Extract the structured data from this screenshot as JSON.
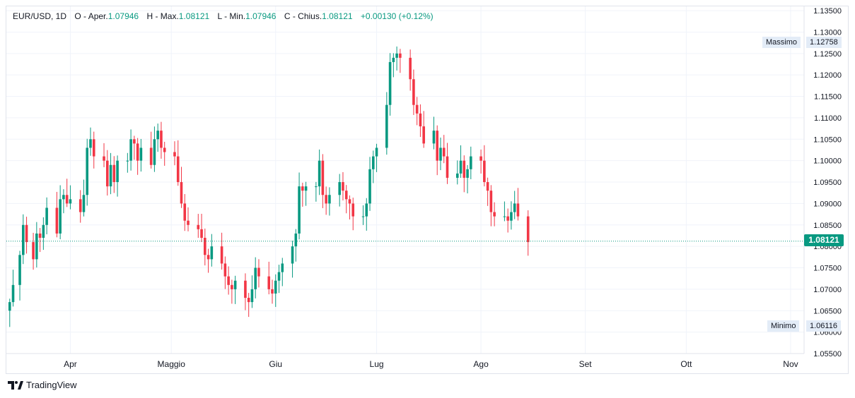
{
  "legend": {
    "symbol": "EUR/USD, 1D",
    "o_label": "O - Aper.",
    "o_value": "1.07946",
    "h_label": "H - Max.",
    "h_value": "1.08121",
    "l_label": "L - Min.",
    "l_value": "1.07946",
    "c_label": "C - Chius.",
    "c_value": "1.08121",
    "change": "+0.00130 (+0.12%)"
  },
  "max_tag": {
    "label": "Massimo",
    "value": "1.12758"
  },
  "min_tag": {
    "label": "Minimo",
    "value": "1.06116"
  },
  "last_price": "1.08121",
  "brand": "TradingView",
  "colors": {
    "up": "#089981",
    "down": "#f23645",
    "grid": "#f0f3fa",
    "last_line": "#089981"
  },
  "chart_data": {
    "type": "candlestick",
    "symbol": "EUR/USD",
    "interval": "1D",
    "y_ticks": [
      "1.05500",
      "1.06000",
      "1.06500",
      "1.07000",
      "1.07500",
      "1.08000",
      "1.08500",
      "1.09000",
      "1.09500",
      "1.10000",
      "1.10500",
      "1.11000",
      "1.11500",
      "1.12000",
      "1.12500",
      "1.13000",
      "1.13500"
    ],
    "ylim": [
      1.055,
      1.136
    ],
    "x_ticks": [
      {
        "label": "Apr",
        "day": 12
      },
      {
        "label": "Maggio",
        "day": 42
      },
      {
        "label": "Giu",
        "day": 73
      },
      {
        "label": "Lug",
        "day": 103
      },
      {
        "label": "Ago",
        "day": 134
      },
      {
        "label": "Set",
        "day": 165
      },
      {
        "label": "Ott",
        "day": 195
      },
      {
        "label": "Nov",
        "day": 226
      }
    ],
    "xlim_days": [
      -7,
      230
    ],
    "trend_close": [
      [
        -6,
        1.067
      ],
      [
        -5,
        1.071
      ],
      [
        -3,
        1.078
      ],
      [
        -2,
        1.085
      ],
      [
        -1,
        1.081
      ],
      [
        1,
        1.077
      ],
      [
        2,
        1.083
      ],
      [
        3,
        1.082
      ],
      [
        4,
        1.085
      ],
      [
        5,
        1.089
      ],
      [
        8,
        1.083
      ],
      [
        9,
        1.091
      ],
      [
        10,
        1.092
      ],
      [
        11,
        1.09
      ],
      [
        12,
        1.091
      ],
      [
        15,
        1.088
      ],
      [
        16,
        1.092
      ],
      [
        17,
        1.103
      ],
      [
        18,
        1.105
      ],
      [
        19,
        1.101
      ],
      [
        22,
        1.1
      ],
      [
        23,
        1.094
      ],
      [
        24,
        1.099
      ],
      [
        25,
        1.095
      ],
      [
        26,
        1.1
      ],
      [
        29,
        1.1
      ],
      [
        30,
        1.105
      ],
      [
        31,
        1.104
      ],
      [
        32,
        1.1
      ],
      [
        33,
        1.103
      ],
      [
        36,
        1.099
      ],
      [
        37,
        1.105
      ],
      [
        38,
        1.107
      ],
      [
        39,
        1.103
      ],
      [
        40,
        1.102
      ],
      [
        43,
        1.101
      ],
      [
        44,
        1.095
      ],
      [
        45,
        1.09
      ],
      [
        46,
        1.086
      ],
      [
        47,
        1.085
      ],
      [
        50,
        1.084
      ],
      [
        51,
        1.082
      ],
      [
        52,
        1.078
      ],
      [
        53,
        1.077
      ],
      [
        54,
        1.08
      ],
      [
        57,
        1.076
      ],
      [
        58,
        1.073
      ],
      [
        59,
        1.071
      ],
      [
        60,
        1.07
      ],
      [
        61,
        1.072
      ],
      [
        64,
        1.068
      ],
      [
        65,
        1.067
      ],
      [
        66,
        1.07
      ],
      [
        67,
        1.075
      ],
      [
        68,
        1.073
      ],
      [
        71,
        1.07
      ],
      [
        72,
        1.069
      ],
      [
        73,
        1.072
      ],
      [
        74,
        1.074
      ],
      [
        75,
        1.076
      ],
      [
        78,
        1.08
      ],
      [
        79,
        1.083
      ],
      [
        80,
        1.094
      ],
      [
        81,
        1.093
      ],
      [
        82,
        1.094
      ],
      [
        85,
        1.094
      ],
      [
        86,
        1.1
      ],
      [
        87,
        1.092
      ],
      [
        88,
        1.09
      ],
      [
        89,
        1.092
      ],
      [
        92,
        1.095
      ],
      [
        93,
        1.093
      ],
      [
        94,
        1.091
      ],
      [
        95,
        1.09
      ],
      [
        96,
        1.087
      ],
      [
        99,
        1.087
      ],
      [
        100,
        1.09
      ],
      [
        101,
        1.098
      ],
      [
        102,
        1.101
      ],
      [
        103,
        1.103
      ],
      [
        106,
        1.113
      ],
      [
        107,
        1.123
      ],
      [
        108,
        1.124
      ],
      [
        109,
        1.125
      ],
      [
        110,
        1.124
      ],
      [
        113,
        1.119
      ],
      [
        114,
        1.113
      ],
      [
        115,
        1.111
      ],
      [
        116,
        1.108
      ],
      [
        117,
        1.104
      ],
      [
        120,
        1.107
      ],
      [
        121,
        1.1
      ],
      [
        122,
        1.103
      ],
      [
        123,
        1.101
      ],
      [
        124,
        1.096
      ],
      [
        127,
        1.097
      ],
      [
        128,
        1.1
      ],
      [
        129,
        1.096
      ],
      [
        130,
        1.098
      ],
      [
        131,
        1.101
      ],
      [
        134,
        1.1
      ],
      [
        135,
        1.095
      ],
      [
        136,
        1.093
      ],
      [
        137,
        1.088
      ],
      [
        138,
        1.087
      ],
      [
        141,
        1.087
      ],
      [
        142,
        1.086
      ],
      [
        143,
        1.088
      ],
      [
        144,
        1.09
      ],
      [
        145,
        1.087
      ],
      [
        148,
        1.081
      ]
    ]
  }
}
